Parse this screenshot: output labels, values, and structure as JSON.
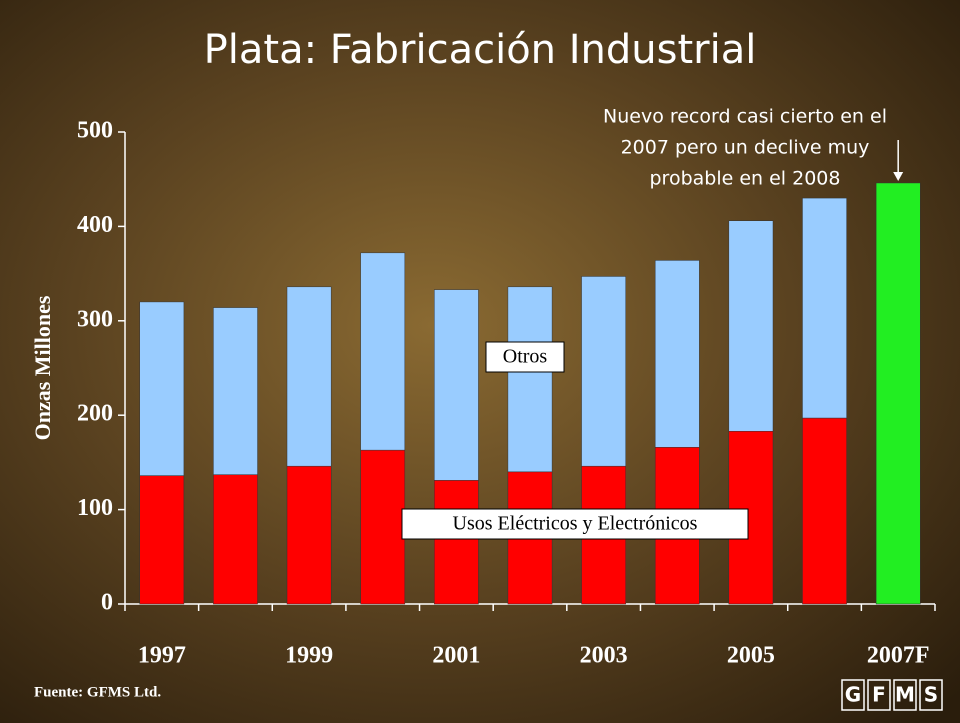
{
  "chart_data": {
    "type": "stacked-bar",
    "title": "Plata: Fabricación Industrial",
    "y_label": "Onzas Millones",
    "categories": [
      "1997",
      null,
      "1999",
      null,
      "2001",
      null,
      "2003",
      null,
      "2005",
      null,
      "2007F"
    ],
    "series": [
      {
        "name": "Usos Eléctricos y Electrónicos",
        "color": "#ff0000",
        "values": [
          136,
          137,
          146,
          163,
          131,
          140,
          146,
          166,
          183,
          197,
          null
        ]
      },
      {
        "name": "Otros",
        "color": "#99ccff",
        "values": [
          184,
          177,
          190,
          209,
          202,
          196,
          201,
          198,
          223,
          233,
          null
        ]
      },
      {
        "color": "#22ee22",
        "values": [
          null,
          null,
          null,
          null,
          null,
          null,
          null,
          null,
          null,
          null,
          446
        ]
      }
    ],
    "ylim": [
      0,
      500
    ],
    "yticks": [
      0,
      100,
      200,
      300,
      400,
      500
    ],
    "annotation": [
      "Nuevo record casi cierto en el",
      "2007 pero un declive muy",
      "probable en el 2008"
    ],
    "source": "Fuente: GFMS Ltd.",
    "logo": [
      "G",
      "F",
      "M",
      "S"
    ]
  }
}
